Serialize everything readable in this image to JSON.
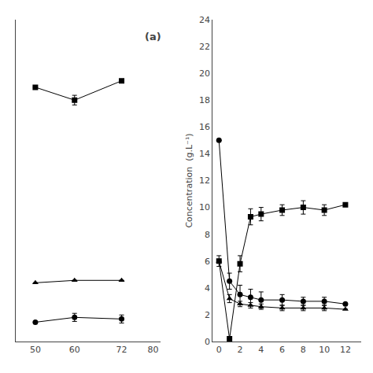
{
  "chart_data": [
    {
      "type": "line",
      "x": [
        50,
        60,
        72
      ],
      "series": [
        {
          "values": [
            15.8,
            15.0,
            16.2
          ],
          "errors": [
            0.0,
            0.3,
            0.0
          ],
          "marker": "square",
          "color": "black"
        },
        {
          "values": [
            3.65,
            3.8,
            3.8
          ],
          "errors": [
            0.0,
            0.0,
            0.0
          ],
          "marker": "triangle",
          "color": "black"
        },
        {
          "values": [
            1.2,
            1.5,
            1.4
          ],
          "errors": [
            0.0,
            0.25,
            0.25
          ],
          "marker": "circle",
          "color": "black"
        }
      ],
      "xlim": [
        45,
        82
      ],
      "xticks": [
        50,
        60,
        72,
        80
      ],
      "ylim": [
        0,
        20
      ],
      "yticks": [],
      "tick_labels": "x",
      "annotations": [
        "(a)"
      ],
      "grid": false
    },
    {
      "type": "line",
      "ylabel": "Concentration  (g.L⁻¹)",
      "x": [
        0,
        1,
        2,
        3,
        4,
        6,
        8,
        10,
        12
      ],
      "series": [
        {
          "values": [
            6.0,
            0.2,
            5.8,
            9.3,
            9.5,
            9.8,
            10.0,
            9.8,
            10.2
          ],
          "errors": [
            0.4,
            0.0,
            0.6,
            0.6,
            0.5,
            0.4,
            0.5,
            0.4,
            0.0
          ],
          "marker": "square",
          "color": "black"
        },
        {
          "values": [
            15.0,
            4.5,
            3.5,
            3.3,
            3.1,
            3.1,
            3.0,
            3.0,
            2.8
          ],
          "errors": [
            0.0,
            0.6,
            0.7,
            0.6,
            0.6,
            0.4,
            0.3,
            0.3,
            0.0
          ],
          "marker": "circle",
          "color": "black"
        },
        {
          "values": [
            6.0,
            3.2,
            2.8,
            2.7,
            2.6,
            2.5,
            2.5,
            2.5,
            2.4
          ],
          "errors": [
            0.0,
            0.3,
            0.2,
            0.2,
            0.2,
            0.2,
            0.2,
            0.2,
            0.0
          ],
          "marker": "triangle",
          "color": "black"
        }
      ],
      "xlim": [
        -0.6,
        13.5
      ],
      "xticks": [
        0,
        2,
        4,
        6,
        8,
        10,
        12
      ],
      "ylim": [
        0,
        24
      ],
      "yticks": [
        0,
        2,
        4,
        6,
        8,
        10,
        12,
        14,
        16,
        18,
        20,
        22,
        24
      ],
      "grid": false
    }
  ]
}
